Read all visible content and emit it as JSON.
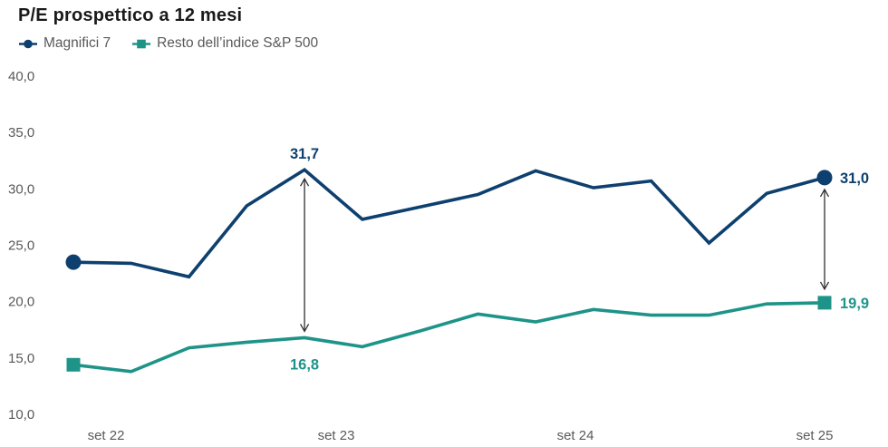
{
  "title": "P/E prospettico a 12 mesi",
  "legend": [
    {
      "label": "Magnifici 7",
      "color": "#0e406f",
      "marker": "circle"
    },
    {
      "label": "Resto dell’indice S&P 500",
      "color": "#1e9489",
      "marker": "square"
    }
  ],
  "colors": {
    "magnifici7": "#0e406f",
    "resto_sp500": "#1e9489",
    "axis_text": "#595959",
    "title_text": "#1a1a1a",
    "arrow": "#2f2f2f",
    "background": "#ffffff"
  },
  "chart_data": {
    "type": "line",
    "title": "P/E prospettico a 12 mesi",
    "xlabel": "",
    "ylabel": "",
    "ylim": [
      10,
      40
    ],
    "grid": false,
    "legend_position": "top-left",
    "x_labels": [
      "set 22",
      "set 23",
      "set 24",
      "set 25"
    ],
    "y_ticks": [
      {
        "v": 40,
        "label": "40,0"
      },
      {
        "v": 35,
        "label": "35,0"
      },
      {
        "v": 30,
        "label": "30,0"
      },
      {
        "v": 25,
        "label": "25,0"
      },
      {
        "v": 20,
        "label": "20,0"
      },
      {
        "v": 15,
        "label": "15,0"
      },
      {
        "v": 10,
        "label": "10,0"
      }
    ],
    "series": [
      {
        "name": "Magnifici 7",
        "color": "#0e406f",
        "marker": "circle",
        "values": [
          23.5,
          23.4,
          22.2,
          28.5,
          31.7,
          27.3,
          28.4,
          29.5,
          31.6,
          30.1,
          30.7,
          25.2,
          29.6,
          31.0
        ]
      },
      {
        "name": "Resto dell’indice S&P 500",
        "color": "#1e9489",
        "marker": "square",
        "values": [
          14.4,
          13.8,
          15.9,
          16.4,
          16.8,
          16.0,
          17.4,
          18.9,
          18.2,
          19.3,
          18.8,
          18.8,
          19.8,
          19.9
        ]
      }
    ],
    "annotations": [
      {
        "series": 0,
        "index": 4,
        "text": "31,7",
        "placement": "above"
      },
      {
        "series": 1,
        "index": 4,
        "text": "16,8",
        "placement": "below"
      },
      {
        "series": 0,
        "index": 13,
        "text": "31,0",
        "placement": "right"
      },
      {
        "series": 1,
        "index": 13,
        "text": "19,9",
        "placement": "right"
      }
    ],
    "arrows": [
      {
        "index": 4,
        "from_series": 0,
        "to_series": 1
      },
      {
        "index": 13,
        "from_series": 0,
        "to_series": 1
      }
    ]
  }
}
